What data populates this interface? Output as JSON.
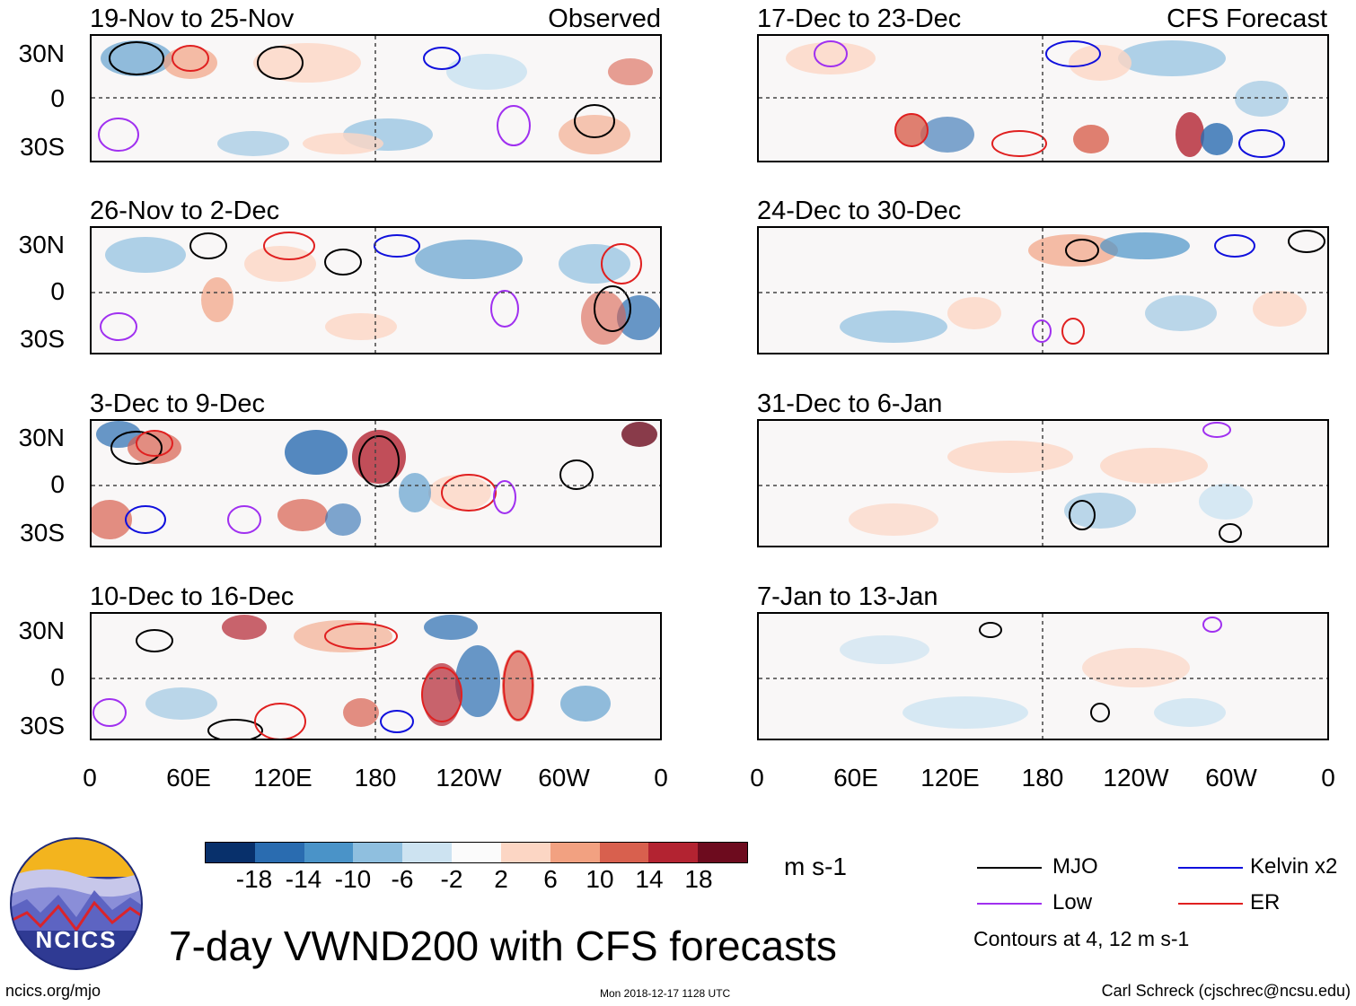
{
  "title": "7-day VWND200 with CFS forecasts",
  "website": "ncics.org/mjo",
  "timestamp": "Mon 2018-12-17 1128 UTC",
  "author": "Carl Schreck (cjschrec@ncsu.edu)",
  "logo_text": "NCICS",
  "units": "m s-1",
  "contour_note": "Contours at 4, 12 m s-1",
  "colorbar": {
    "colors": [
      "#08306b",
      "#2a6cb0",
      "#4a93c8",
      "#8fbfdf",
      "#cde3f1",
      "#fbfbfb",
      "#fcd6c4",
      "#f2a181",
      "#d8604e",
      "#b32331",
      "#6d0b1e"
    ],
    "labels": [
      "-18",
      "-14",
      "-10",
      "-6",
      "-2",
      "2",
      "6",
      "10",
      "14",
      "18"
    ]
  },
  "legend": [
    {
      "label": "MJO",
      "color": "#000000"
    },
    {
      "label": "Kelvin x2",
      "color": "#1010dd"
    },
    {
      "label": "Low",
      "color": "#a030f0"
    },
    {
      "label": "ER",
      "color": "#e02020"
    }
  ],
  "lat_labels": [
    "30N",
    "0",
    "30S"
  ],
  "lon_labels": [
    "0",
    "60E",
    "120E",
    "180",
    "120W",
    "60W",
    "0"
  ],
  "observed_label": "Observed",
  "forecast_label": "CFS Forecast",
  "observed_panels": [
    {
      "title": "19-Nov to 25-Nov"
    },
    {
      "title": "26-Nov to 2-Dec"
    },
    {
      "title": "3-Dec to 9-Dec"
    },
    {
      "title": "10-Dec to 16-Dec"
    }
  ],
  "forecast_panels": [
    {
      "title": "17-Dec to 23-Dec"
    },
    {
      "title": "24-Dec to 30-Dec"
    },
    {
      "title": "31-Dec to 6-Jan"
    },
    {
      "title": "7-Jan to 13-Jan"
    }
  ]
}
